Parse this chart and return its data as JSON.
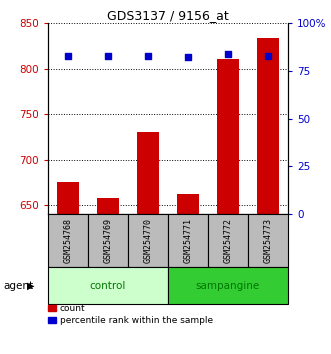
{
  "title": "GDS3137 / 9156_at",
  "samples": [
    "GSM254768",
    "GSM254769",
    "GSM254770",
    "GSM254771",
    "GSM254772",
    "GSM254773"
  ],
  "count_values": [
    675,
    658,
    730,
    662,
    810,
    833
  ],
  "percentile_values": [
    83,
    83,
    83,
    82,
    84,
    83
  ],
  "ylim_left": [
    640,
    850
  ],
  "ylim_right": [
    0,
    100
  ],
  "yticks_left": [
    650,
    700,
    750,
    800,
    850
  ],
  "yticks_right": [
    0,
    25,
    50,
    75,
    100
  ],
  "ytick_labels_right": [
    "0",
    "25",
    "50",
    "75",
    "100%"
  ],
  "bar_color": "#cc0000",
  "dot_color": "#0000cc",
  "control_color": "#ccffcc",
  "sampangine_color": "#33cc33",
  "group_label_color": "#007700",
  "left_tick_color": "#cc0000",
  "right_tick_color": "#0000cc",
  "legend_count_label": "count",
  "legend_percentile_label": "percentile rank within the sample",
  "base_value": 640,
  "group_defs": [
    {
      "name": "control",
      "start": 0,
      "end": 2
    },
    {
      "name": "sampangine",
      "start": 3,
      "end": 5
    }
  ]
}
